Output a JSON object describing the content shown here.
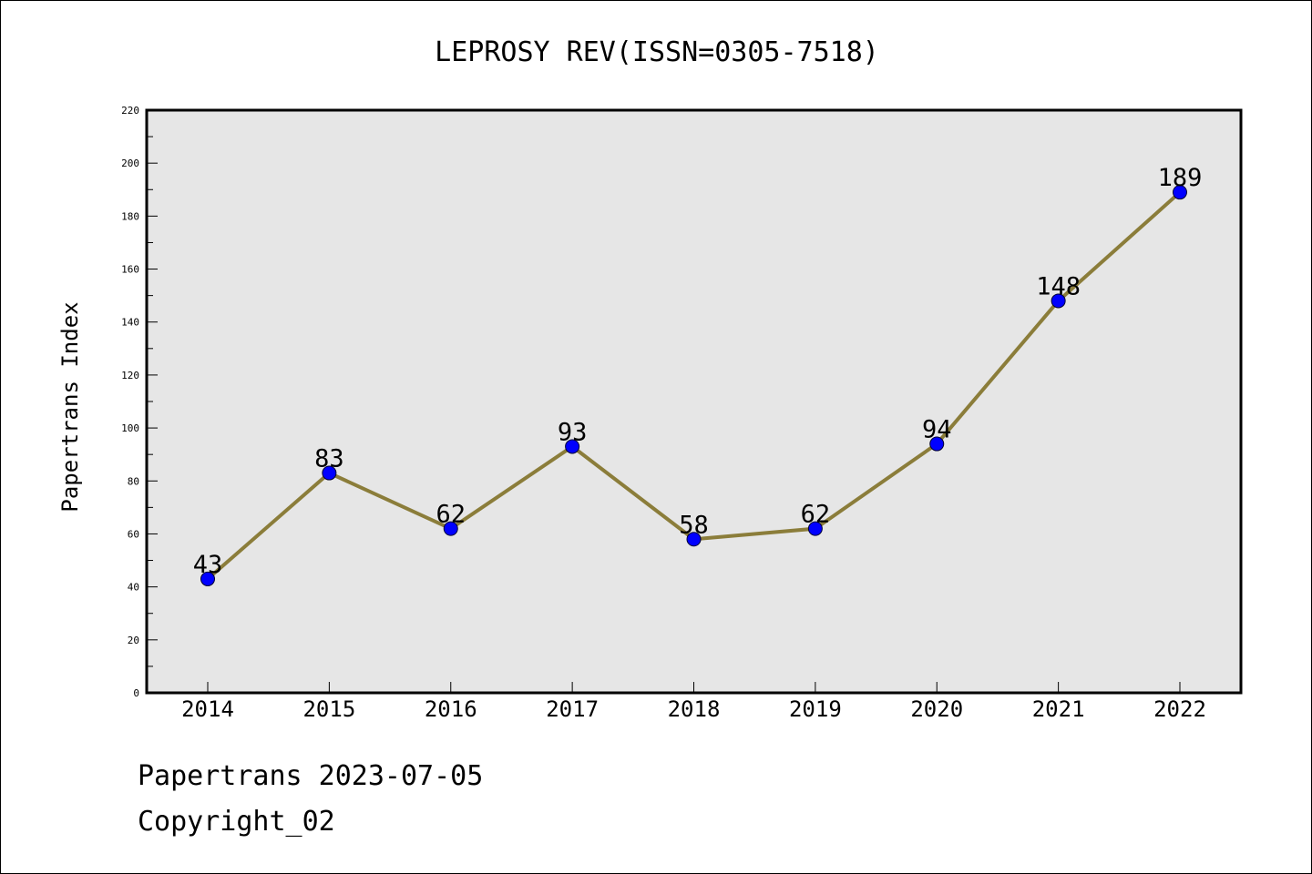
{
  "chart_data": {
    "type": "line",
    "title": "LEPROSY REV(ISSN=0305-7518)",
    "ylabel": "Papertrans Index",
    "xlabel": "",
    "categories": [
      "2014",
      "2015",
      "2016",
      "2017",
      "2018",
      "2019",
      "2020",
      "2021",
      "2022"
    ],
    "series": [
      {
        "values": [
          43,
          83,
          62,
          93,
          58,
          62,
          94,
          148,
          189
        ]
      }
    ],
    "data_labels": [
      "43",
      "83",
      "62",
      "93",
      "58",
      "62",
      "94",
      "148",
      "189"
    ],
    "ylim": [
      0,
      220
    ],
    "y_ticks": [
      "0",
      "20",
      "40",
      "60",
      "80",
      "100",
      "120",
      "140",
      "160",
      "180",
      "200",
      "220"
    ],
    "grid": false,
    "legend": "none",
    "colors": {
      "line": "#8b7d3a",
      "marker_fill": "#0000ff",
      "marker_edge": "#000033",
      "plot_background": "#e6e6e6",
      "axes": "#000000"
    }
  },
  "footer": {
    "line1": "Papertrans 2023-07-05",
    "line2": "Copyright_02"
  }
}
